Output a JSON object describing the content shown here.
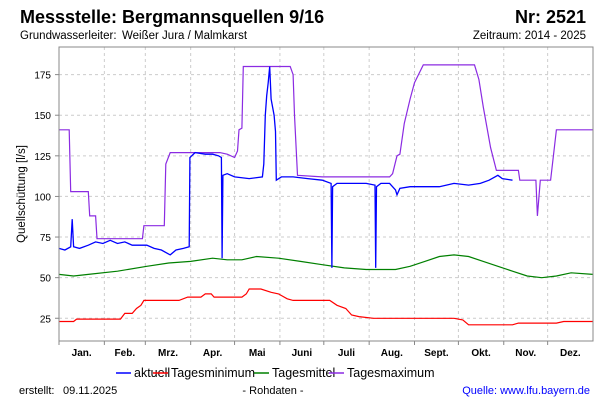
{
  "header": {
    "title": "Messstelle: Bergmannsquellen 9/16",
    "number": "Nr: 2521",
    "aquifer_label": "Grundwasserleiter:",
    "aquifer_value": "Weißer Jura / Malmkarst",
    "period": "Zeitraum: 2014 - 2025"
  },
  "footer": {
    "created_label": "erstellt:",
    "created_date": "09.11.2025",
    "note": "- Rohdaten -",
    "source": "Quelle: www.lfu.bayern.de"
  },
  "colors": {
    "aktuell": "#0000ff",
    "min": "#ff0000",
    "mittel": "#008000",
    "max": "#8b2be2",
    "source_link": "#0000ff"
  },
  "chart_data": {
    "type": "line",
    "title": "Messstelle: Bergmannsquellen 9/16",
    "xlabel": "",
    "ylabel": "Quellschüttung [l/s]",
    "x_unit": "day of year",
    "xlim": [
      0,
      365
    ],
    "ylim": [
      11,
      192
    ],
    "yticks": [
      25,
      50,
      75,
      100,
      125,
      150,
      175
    ],
    "month_labels": [
      "Jan.",
      "Feb.",
      "Mrz.",
      "Apr.",
      "Mai",
      "Juni",
      "Juli",
      "Aug.",
      "Sept.",
      "Okt.",
      "Nov.",
      "Dez."
    ],
    "grid": true,
    "legend_position": "bottom",
    "series": [
      {
        "name": "aktuell",
        "key": "aktuell",
        "points": [
          [
            0,
            68
          ],
          [
            4,
            67
          ],
          [
            8,
            69
          ],
          [
            9,
            86
          ],
          [
            10,
            69
          ],
          [
            14,
            68
          ],
          [
            20,
            70
          ],
          [
            25,
            72
          ],
          [
            30,
            71
          ],
          [
            35,
            73
          ],
          [
            40,
            71
          ],
          [
            45,
            72
          ],
          [
            50,
            70
          ],
          [
            55,
            70
          ],
          [
            60,
            70
          ],
          [
            65,
            68
          ],
          [
            70,
            67
          ],
          [
            76,
            64
          ],
          [
            80,
            67
          ],
          [
            85,
            68
          ],
          [
            89,
            69
          ],
          [
            89.5,
            124
          ],
          [
            93,
            127
          ],
          [
            100,
            126
          ],
          [
            105,
            126
          ],
          [
            109,
            125
          ],
          [
            111,
            124
          ],
          [
            111.5,
            62
          ],
          [
            112,
            113
          ],
          [
            115,
            114
          ],
          [
            120,
            112
          ],
          [
            130,
            111
          ],
          [
            139,
            112
          ],
          [
            140,
            120
          ],
          [
            141,
            150
          ],
          [
            142,
            162
          ],
          [
            143,
            170
          ],
          [
            144,
            180
          ],
          [
            145,
            160
          ],
          [
            147,
            150
          ],
          [
            148,
            140
          ],
          [
            148.5,
            110
          ],
          [
            152,
            112
          ],
          [
            160,
            112
          ],
          [
            170,
            111
          ],
          [
            180,
            110
          ],
          [
            186,
            108
          ],
          [
            186.5,
            56
          ],
          [
            187,
            106
          ],
          [
            190,
            108
          ],
          [
            200,
            108
          ],
          [
            210,
            108
          ],
          [
            216,
            107
          ],
          [
            216.5,
            56
          ],
          [
            217,
            106
          ],
          [
            220,
            108
          ],
          [
            226,
            108
          ],
          [
            230,
            104
          ],
          [
            231,
            101
          ],
          [
            233,
            105
          ],
          [
            240,
            106
          ],
          [
            250,
            106
          ],
          [
            260,
            106
          ],
          [
            270,
            108
          ],
          [
            280,
            107
          ],
          [
            288,
            108
          ],
          [
            294,
            110
          ],
          [
            300,
            113
          ],
          [
            303,
            111
          ],
          [
            310,
            110
          ]
        ]
      },
      {
        "name": "Tagesminimum",
        "key": "min",
        "points": [
          [
            0,
            23
          ],
          [
            10,
            23
          ],
          [
            12,
            24.5
          ],
          [
            42,
            24.5
          ],
          [
            45,
            28
          ],
          [
            50,
            28
          ],
          [
            53,
            31
          ],
          [
            56,
            33
          ],
          [
            58,
            36
          ],
          [
            82,
            36
          ],
          [
            88,
            38
          ],
          [
            97,
            38
          ],
          [
            100,
            40
          ],
          [
            104,
            40
          ],
          [
            106,
            38
          ],
          [
            125,
            38
          ],
          [
            128,
            40
          ],
          [
            130,
            43
          ],
          [
            138,
            43
          ],
          [
            145,
            41
          ],
          [
            150,
            40
          ],
          [
            156,
            37
          ],
          [
            160,
            36
          ],
          [
            185,
            36
          ],
          [
            190,
            33
          ],
          [
            196,
            31
          ],
          [
            200,
            27
          ],
          [
            205,
            26
          ],
          [
            215,
            25
          ],
          [
            270,
            25
          ],
          [
            276,
            24
          ],
          [
            280,
            21
          ],
          [
            310,
            21
          ],
          [
            314,
            22
          ],
          [
            340,
            22
          ],
          [
            345,
            23
          ],
          [
            365,
            23
          ]
        ]
      },
      {
        "name": "Tagesmittel",
        "key": "mittel",
        "points": [
          [
            0,
            52
          ],
          [
            10,
            51
          ],
          [
            20,
            52
          ],
          [
            40,
            54
          ],
          [
            60,
            57
          ],
          [
            75,
            59
          ],
          [
            90,
            60
          ],
          [
            105,
            62
          ],
          [
            115,
            61
          ],
          [
            125,
            61
          ],
          [
            135,
            63
          ],
          [
            150,
            62
          ],
          [
            165,
            60
          ],
          [
            180,
            58
          ],
          [
            195,
            56
          ],
          [
            210,
            55
          ],
          [
            230,
            55
          ],
          [
            240,
            57
          ],
          [
            250,
            60
          ],
          [
            260,
            63
          ],
          [
            270,
            64
          ],
          [
            280,
            63
          ],
          [
            290,
            60
          ],
          [
            300,
            57
          ],
          [
            310,
            54
          ],
          [
            320,
            51
          ],
          [
            330,
            50
          ],
          [
            340,
            51
          ],
          [
            350,
            53
          ],
          [
            365,
            52
          ]
        ]
      },
      {
        "name": "Tagesmaximum",
        "key": "max",
        "points": [
          [
            0,
            141
          ],
          [
            7,
            141
          ],
          [
            8,
            103
          ],
          [
            20,
            103
          ],
          [
            21,
            88
          ],
          [
            25,
            88
          ],
          [
            26,
            74
          ],
          [
            57,
            74
          ],
          [
            58,
            82
          ],
          [
            72,
            82
          ],
          [
            73,
            120
          ],
          [
            76,
            127
          ],
          [
            110,
            127
          ],
          [
            115,
            126
          ],
          [
            120,
            124
          ],
          [
            122,
            128
          ],
          [
            123,
            141
          ],
          [
            125,
            142
          ],
          [
            126,
            180
          ],
          [
            158,
            180
          ],
          [
            160,
            175
          ],
          [
            161,
            150
          ],
          [
            163,
            113
          ],
          [
            180,
            112
          ],
          [
            200,
            112
          ],
          [
            226,
            112
          ],
          [
            228,
            114
          ],
          [
            231,
            125
          ],
          [
            233,
            126
          ],
          [
            236,
            145
          ],
          [
            240,
            160
          ],
          [
            243,
            170
          ],
          [
            249,
            181
          ],
          [
            284,
            181
          ],
          [
            287,
            172
          ],
          [
            290,
            155
          ],
          [
            295,
            130
          ],
          [
            299,
            116
          ],
          [
            314,
            116
          ],
          [
            315,
            110
          ],
          [
            326,
            110
          ],
          [
            327,
            88
          ],
          [
            329,
            110
          ],
          [
            336,
            110
          ],
          [
            340,
            141
          ],
          [
            365,
            141
          ]
        ]
      }
    ]
  }
}
